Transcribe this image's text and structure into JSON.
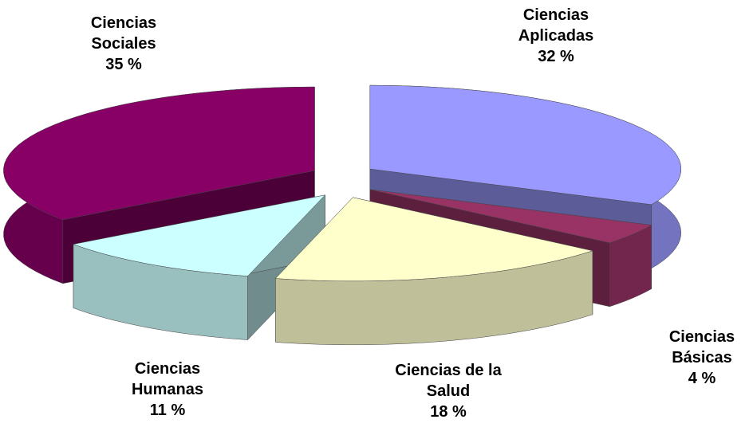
{
  "chart_data": {
    "type": "pie3d",
    "categories": [
      "Ciencias Aplicadas",
      "Ciencias Básicas",
      "Ciencias de la Salud",
      "Ciencias Humanas",
      "Ciencias Sociales"
    ],
    "values": [
      32,
      4,
      18,
      11,
      35
    ],
    "value_labels": [
      "32 %",
      "4 %",
      "18 %",
      "11 %",
      "35 %"
    ],
    "colors": [
      "#9999ff",
      "#993366",
      "#ffffcc",
      "#ccffff",
      "#880066"
    ]
  }
}
